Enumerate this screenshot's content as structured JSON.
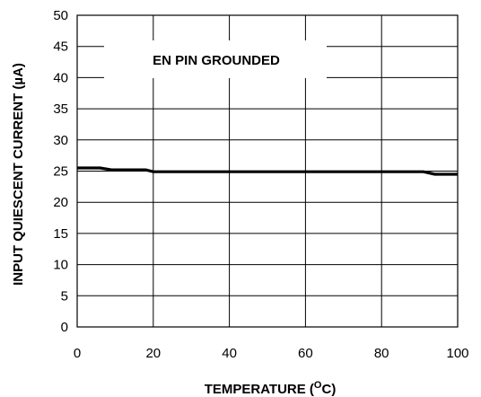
{
  "chart_data": {
    "type": "line",
    "title": "",
    "annotation": "EN PIN GROUNDED",
    "xlabel": "TEMPERATURE (",
    "xlabel_sup": "O",
    "xlabel_end": "C)",
    "ylabel": "INPUT QUIESCENT CURRENT (µA)",
    "xlim": [
      0,
      100
    ],
    "ylim": [
      0,
      50
    ],
    "xticks": [
      0,
      20,
      40,
      60,
      80,
      100
    ],
    "yticks": [
      0,
      5,
      10,
      15,
      20,
      25,
      30,
      35,
      40,
      45,
      50
    ],
    "grid": true,
    "series": [
      {
        "x": [
          0,
          6,
          9,
          18,
          20,
          91,
          94,
          100
        ],
        "y": [
          25.5,
          25.5,
          25.2,
          25.2,
          24.9,
          24.9,
          24.5,
          24.5
        ]
      }
    ],
    "colors": {
      "line": "#000000",
      "grid": "#000000",
      "background": "#ffffff"
    }
  }
}
